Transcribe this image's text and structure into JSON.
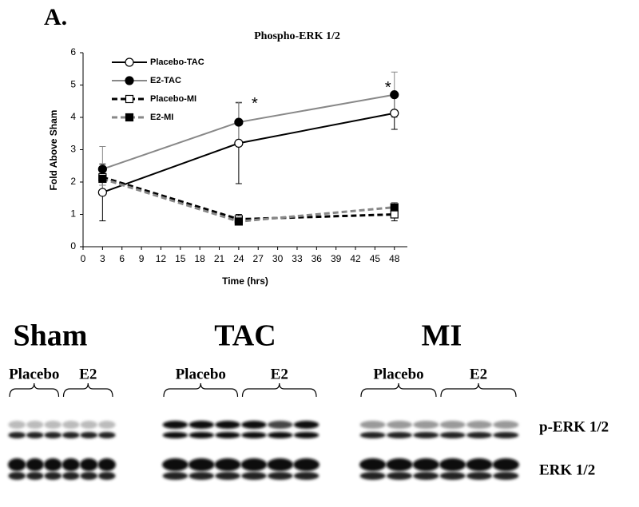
{
  "panel_label": "A.",
  "chart_data": {
    "type": "line",
    "title": "Phospho-ERK 1/2",
    "x_label": "Time (hrs)",
    "y_label": "Fold Above Sham",
    "x": [
      3,
      24,
      48
    ],
    "xlim": [
      0,
      50
    ],
    "xticks": [
      0,
      3,
      6,
      9,
      12,
      15,
      18,
      21,
      24,
      27,
      30,
      33,
      36,
      39,
      42,
      45,
      48
    ],
    "ylim": [
      0,
      6
    ],
    "yticks": [
      0,
      1,
      2,
      3,
      4,
      5,
      6
    ],
    "legend": "upper left",
    "series": [
      {
        "name": "Placebo-TAC",
        "color": "#000000",
        "dash": false,
        "marker": "circle",
        "filled": false,
        "values": [
          1.68,
          3.2,
          4.13
        ],
        "errors": [
          0.88,
          1.25,
          0.5
        ]
      },
      {
        "name": "E2-TAC",
        "color": "#888888",
        "dash": false,
        "marker": "circle",
        "filled": true,
        "values": [
          2.4,
          3.85,
          4.7
        ],
        "errors": [
          0.7,
          0.62,
          0.7
        ]
      },
      {
        "name": "Placebo-MI",
        "color": "#000000",
        "dash": true,
        "marker": "square",
        "filled": false,
        "values": [
          2.15,
          0.85,
          1.0
        ],
        "errors": [
          0.25,
          0.15,
          0.2
        ]
      },
      {
        "name": "E2-MI",
        "color": "#888888",
        "dash": true,
        "marker": "square",
        "filled": true,
        "values": [
          2.1,
          0.78,
          1.22
        ],
        "errors": [
          0.2,
          0.1,
          0.15
        ]
      }
    ],
    "annotations": [
      {
        "text": "*",
        "x": 24,
        "y": 4.45
      },
      {
        "text": "*",
        "x": 48,
        "y": 4.95
      }
    ]
  },
  "blots": {
    "groups": [
      {
        "label": "Sham",
        "subgroups": [
          "Placebo",
          "E2"
        ]
      },
      {
        "label": "TAC",
        "subgroups": [
          "Placebo",
          "E2"
        ]
      },
      {
        "label": "MI",
        "subgroups": [
          "Placebo",
          "E2"
        ]
      }
    ],
    "rows": [
      "p-ERK 1/2",
      "ERK 1/2"
    ]
  }
}
